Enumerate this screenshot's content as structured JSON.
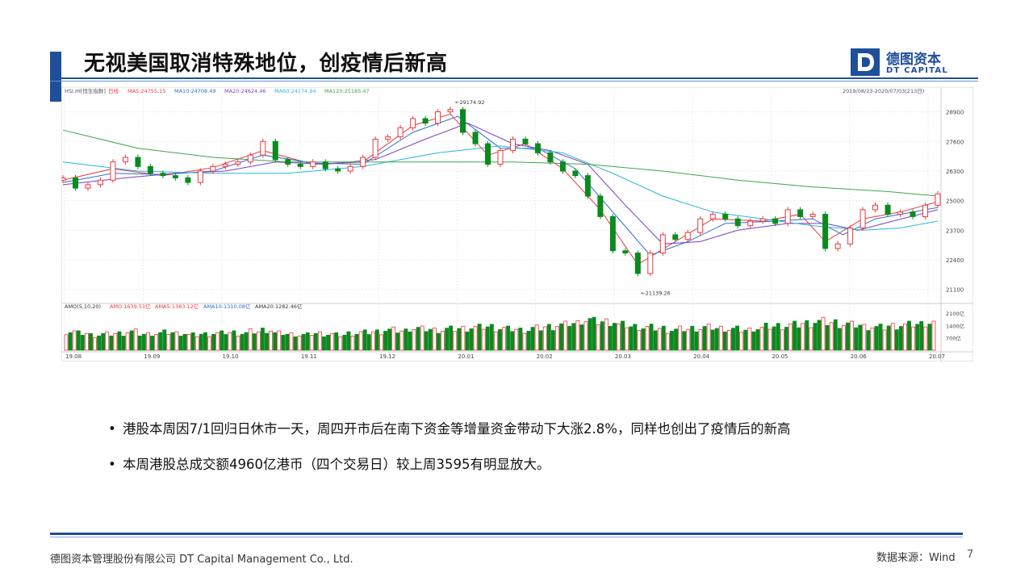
{
  "title": "无视美国取消特殊地位，创疫情后新高",
  "logo": {
    "cn": "德图资本",
    "en": "DT CAPITAL",
    "icon": "d-letter-logo-icon"
  },
  "colors": {
    "accent": "#1f4e9a",
    "up": "#e8393f",
    "down": "#0b8a1f",
    "ma5": "#e8393f",
    "ma10": "#2c6fd1",
    "ma20": "#7b3fbf",
    "ma60": "#29b6d8",
    "ma120": "#3aa64a"
  },
  "chart_data": {
    "type": "candlestick",
    "symbol_label": "HSI.HI",
    "symbol_tag": "[恒生指数]",
    "period_tag": "日线",
    "date_range": "2019/08/23-2020/07/03(213日)",
    "ma_legend": [
      {
        "name": "MA5",
        "value": "24755.15"
      },
      {
        "name": "MA10",
        "value": "24708.49"
      },
      {
        "name": "MA20",
        "value": "24624.46"
      },
      {
        "name": "MA60",
        "value": "24174.94"
      },
      {
        "name": "MA120",
        "value": "25185.47"
      }
    ],
    "y_ticks": [
      28900,
      27600,
      26300,
      25000,
      23700,
      22400,
      21100
    ],
    "ylim": [
      20700,
      29700
    ],
    "high_label": "29174.92",
    "low_label": "21139.26",
    "x_ticks": [
      "19.08",
      "19.09",
      "19.10",
      "19.11",
      "19.12",
      "20.01",
      "20.02",
      "20.03",
      "20.04",
      "20.05",
      "20.06",
      "20.07"
    ],
    "closes": [
      {
        "x": 0,
        "y": 26000
      },
      {
        "x": 5,
        "y": 25550
      },
      {
        "x": 10,
        "y": 25700
      },
      {
        "x": 15,
        "y": 25900
      },
      {
        "x": 20,
        "y": 26700
      },
      {
        "x": 25,
        "y": 26900
      },
      {
        "x": 30,
        "y": 26500
      },
      {
        "x": 35,
        "y": 26200
      },
      {
        "x": 40,
        "y": 26100
      },
      {
        "x": 45,
        "y": 26000
      },
      {
        "x": 50,
        "y": 25800
      },
      {
        "x": 55,
        "y": 26300
      },
      {
        "x": 60,
        "y": 26500
      },
      {
        "x": 65,
        "y": 26600
      },
      {
        "x": 70,
        "y": 26700
      },
      {
        "x": 75,
        "y": 27000
      },
      {
        "x": 80,
        "y": 27600
      },
      {
        "x": 85,
        "y": 26800
      },
      {
        "x": 90,
        "y": 26600
      },
      {
        "x": 95,
        "y": 26500
      },
      {
        "x": 100,
        "y": 26700
      },
      {
        "x": 105,
        "y": 26400
      },
      {
        "x": 110,
        "y": 26300
      },
      {
        "x": 115,
        "y": 26500
      },
      {
        "x": 120,
        "y": 26900
      },
      {
        "x": 125,
        "y": 27700
      },
      {
        "x": 130,
        "y": 27800
      },
      {
        "x": 135,
        "y": 28200
      },
      {
        "x": 140,
        "y": 28600
      },
      {
        "x": 145,
        "y": 28400
      },
      {
        "x": 150,
        "y": 28900
      },
      {
        "x": 155,
        "y": 29000
      },
      {
        "x": 160,
        "y": 28000
      },
      {
        "x": 165,
        "y": 27500
      },
      {
        "x": 170,
        "y": 26600
      },
      {
        "x": 175,
        "y": 27200
      },
      {
        "x": 180,
        "y": 27700
      },
      {
        "x": 185,
        "y": 27500
      },
      {
        "x": 190,
        "y": 27100
      },
      {
        "x": 195,
        "y": 26700
      },
      {
        "x": 200,
        "y": 26300
      },
      {
        "x": 205,
        "y": 26100
      },
      {
        "x": 210,
        "y": 25200
      },
      {
        "x": 215,
        "y": 24300
      },
      {
        "x": 220,
        "y": 22800
      },
      {
        "x": 225,
        "y": 22700
      },
      {
        "x": 230,
        "y": 21800
      },
      {
        "x": 235,
        "y": 22700
      },
      {
        "x": 240,
        "y": 23500
      },
      {
        "x": 245,
        "y": 23300
      },
      {
        "x": 250,
        "y": 23600
      },
      {
        "x": 255,
        "y": 24200
      },
      {
        "x": 260,
        "y": 24400
      },
      {
        "x": 265,
        "y": 24200
      },
      {
        "x": 270,
        "y": 23900
      },
      {
        "x": 275,
        "y": 24100
      },
      {
        "x": 280,
        "y": 24200
      },
      {
        "x": 285,
        "y": 24000
      },
      {
        "x": 290,
        "y": 24600
      },
      {
        "x": 295,
        "y": 24300
      },
      {
        "x": 300,
        "y": 24400
      },
      {
        "x": 305,
        "y": 22900
      },
      {
        "x": 310,
        "y": 23100
      },
      {
        "x": 315,
        "y": 23800
      },
      {
        "x": 320,
        "y": 24600
      },
      {
        "x": 325,
        "y": 24800
      },
      {
        "x": 330,
        "y": 24400
      },
      {
        "x": 335,
        "y": 24500
      },
      {
        "x": 340,
        "y": 24300
      },
      {
        "x": 345,
        "y": 24800
      },
      {
        "x": 350,
        "y": 25300
      }
    ],
    "series": [
      {
        "name": "MA5",
        "values": [
          {
            "x": 0,
            "y": 25900
          },
          {
            "x": 20,
            "y": 26400
          },
          {
            "x": 40,
            "y": 26100
          },
          {
            "x": 60,
            "y": 26450
          },
          {
            "x": 80,
            "y": 27200
          },
          {
            "x": 100,
            "y": 26600
          },
          {
            "x": 120,
            "y": 26700
          },
          {
            "x": 140,
            "y": 28300
          },
          {
            "x": 155,
            "y": 28800
          },
          {
            "x": 170,
            "y": 27000
          },
          {
            "x": 185,
            "y": 27500
          },
          {
            "x": 200,
            "y": 26400
          },
          {
            "x": 215,
            "y": 24600
          },
          {
            "x": 230,
            "y": 22200
          },
          {
            "x": 245,
            "y": 23200
          },
          {
            "x": 260,
            "y": 24200
          },
          {
            "x": 280,
            "y": 24100
          },
          {
            "x": 295,
            "y": 24400
          },
          {
            "x": 305,
            "y": 23200
          },
          {
            "x": 320,
            "y": 24200
          },
          {
            "x": 335,
            "y": 24500
          },
          {
            "x": 350,
            "y": 24950
          }
        ]
      },
      {
        "name": "MA10",
        "values": [
          {
            "x": 0,
            "y": 25800
          },
          {
            "x": 20,
            "y": 26200
          },
          {
            "x": 40,
            "y": 26150
          },
          {
            "x": 60,
            "y": 26300
          },
          {
            "x": 80,
            "y": 27000
          },
          {
            "x": 100,
            "y": 26650
          },
          {
            "x": 120,
            "y": 26600
          },
          {
            "x": 140,
            "y": 28000
          },
          {
            "x": 158,
            "y": 28700
          },
          {
            "x": 175,
            "y": 27300
          },
          {
            "x": 190,
            "y": 27300
          },
          {
            "x": 205,
            "y": 26400
          },
          {
            "x": 220,
            "y": 24500
          },
          {
            "x": 235,
            "y": 22600
          },
          {
            "x": 250,
            "y": 23200
          },
          {
            "x": 265,
            "y": 24000
          },
          {
            "x": 285,
            "y": 24100
          },
          {
            "x": 300,
            "y": 24200
          },
          {
            "x": 312,
            "y": 23500
          },
          {
            "x": 325,
            "y": 24200
          },
          {
            "x": 340,
            "y": 24500
          },
          {
            "x": 350,
            "y": 24700
          }
        ]
      },
      {
        "name": "MA20",
        "values": [
          {
            "x": 0,
            "y": 25700
          },
          {
            "x": 25,
            "y": 26000
          },
          {
            "x": 45,
            "y": 26200
          },
          {
            "x": 65,
            "y": 26300
          },
          {
            "x": 85,
            "y": 26700
          },
          {
            "x": 105,
            "y": 26600
          },
          {
            "x": 125,
            "y": 26800
          },
          {
            "x": 145,
            "y": 27700
          },
          {
            "x": 162,
            "y": 28400
          },
          {
            "x": 180,
            "y": 27500
          },
          {
            "x": 195,
            "y": 27200
          },
          {
            "x": 210,
            "y": 26600
          },
          {
            "x": 225,
            "y": 24800
          },
          {
            "x": 240,
            "y": 23100
          },
          {
            "x": 255,
            "y": 23200
          },
          {
            "x": 270,
            "y": 23700
          },
          {
            "x": 290,
            "y": 24000
          },
          {
            "x": 305,
            "y": 24000
          },
          {
            "x": 318,
            "y": 23700
          },
          {
            "x": 332,
            "y": 24100
          },
          {
            "x": 350,
            "y": 24600
          }
        ]
      },
      {
        "name": "MA60",
        "values": [
          {
            "x": 0,
            "y": 26700
          },
          {
            "x": 30,
            "y": 26300
          },
          {
            "x": 60,
            "y": 26200
          },
          {
            "x": 90,
            "y": 26200
          },
          {
            "x": 120,
            "y": 26500
          },
          {
            "x": 150,
            "y": 27100
          },
          {
            "x": 175,
            "y": 27400
          },
          {
            "x": 200,
            "y": 27100
          },
          {
            "x": 220,
            "y": 26200
          },
          {
            "x": 240,
            "y": 25200
          },
          {
            "x": 260,
            "y": 24500
          },
          {
            "x": 280,
            "y": 24200
          },
          {
            "x": 300,
            "y": 23900
          },
          {
            "x": 320,
            "y": 23700
          },
          {
            "x": 335,
            "y": 23800
          },
          {
            "x": 350,
            "y": 24100
          }
        ]
      },
      {
        "name": "MA120",
        "values": [
          {
            "x": 0,
            "y": 28100
          },
          {
            "x": 30,
            "y": 27300
          },
          {
            "x": 60,
            "y": 26900
          },
          {
            "x": 90,
            "y": 26700
          },
          {
            "x": 120,
            "y": 26700
          },
          {
            "x": 150,
            "y": 26700
          },
          {
            "x": 180,
            "y": 26700
          },
          {
            "x": 210,
            "y": 26600
          },
          {
            "x": 240,
            "y": 26300
          },
          {
            "x": 270,
            "y": 25900
          },
          {
            "x": 300,
            "y": 25600
          },
          {
            "x": 330,
            "y": 25400
          },
          {
            "x": 350,
            "y": 25200
          }
        ]
      }
    ],
    "volume": {
      "legend": [
        {
          "name": "AMO(5,10,20)",
          "value": ""
        },
        {
          "name": "AMO",
          "value": "1639.51亿"
        },
        {
          "name": "AMA5",
          "value": "1383.12亿"
        },
        {
          "name": "AMA10",
          "value": "1310.08亿"
        },
        {
          "name": "AMA20",
          "value": "1282.46亿"
        }
      ],
      "y_ticks": [
        "2100亿",
        "1400亿",
        "700亿"
      ],
      "ylim": [
        0,
        2200
      ],
      "bars": [
        1100,
        1000,
        900,
        950,
        1000,
        1100,
        950,
        1000,
        1050,
        1000,
        900,
        950,
        1000,
        1050,
        1000,
        1100,
        1200,
        1000,
        950,
        900,
        1000,
        950,
        900,
        1000,
        1050,
        1100,
        1200,
        1150,
        1300,
        1250,
        1200,
        1250,
        1300,
        1350,
        1400,
        1300,
        1250,
        1200,
        1300,
        1400,
        1500,
        1600,
        1800,
        1700,
        1700,
        1500,
        1400,
        1350,
        1300,
        1200,
        1250,
        1300,
        1350,
        1300,
        1250,
        1200,
        1300,
        1400,
        1450,
        1500,
        1600,
        1700,
        1650,
        1550,
        1500,
        1400,
        1350,
        1450,
        1500,
        1550,
        1650
      ]
    }
  },
  "bullets": [
    "港股本周因7/1回归日休市一天，周四开市后在南下资金等增量资金带动下大涨2.8%，同样也创出了疫情后的新高",
    "本周港股总成交额4960亿港币（四个交易日）较上周3595有明显放大。"
  ],
  "footer": {
    "company": "德图资本管理股份有限公司  DT Capital  Management  Co., Ltd.",
    "source": "数据来源：Wind",
    "page": "7"
  }
}
